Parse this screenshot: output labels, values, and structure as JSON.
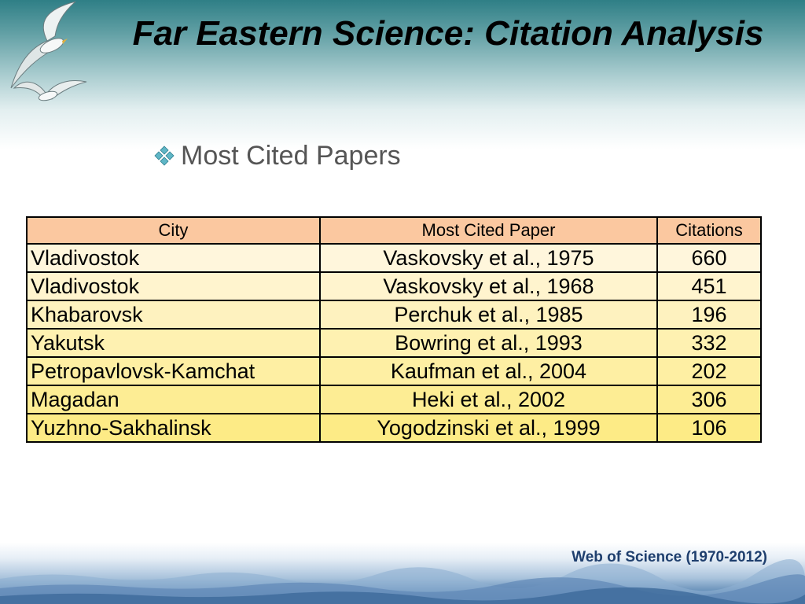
{
  "slide": {
    "title": "Far Eastern Science: Citation Analysis",
    "bullet": "Most Cited Papers",
    "bullet_icon": "four-diamond-bullet-icon",
    "source": "Web of Science (1970-2012)"
  },
  "table": {
    "headers": [
      "City",
      "Most Cited Paper",
      "Citations"
    ],
    "rows": [
      [
        "Vladivostok",
        "Vaskovsky et al., 1975",
        "660"
      ],
      [
        "Vladivostok",
        "Vaskovsky et al., 1968",
        "451"
      ],
      [
        "Khabarovsk",
        "Perchuk et al., 1985",
        "196"
      ],
      [
        "Yakutsk",
        "Bowring et al., 1993",
        "332"
      ],
      [
        "Petropavlovsk-Kamchat",
        "Kaufman et al., 2004",
        "202"
      ],
      [
        "Magadan",
        "Heki et al., 2002",
        "306"
      ],
      [
        "Yuzhno-Sakhalinsk",
        "Yogodzinski et al., 1999",
        "106"
      ]
    ]
  },
  "colors": {
    "header_fill": "#fbc8a0",
    "row_fill_top": "#fff6dc",
    "row_fill_bottom": "#fdeb86",
    "bullet_accent": "#5fb6c6",
    "source_text": "#1f3f6e"
  }
}
